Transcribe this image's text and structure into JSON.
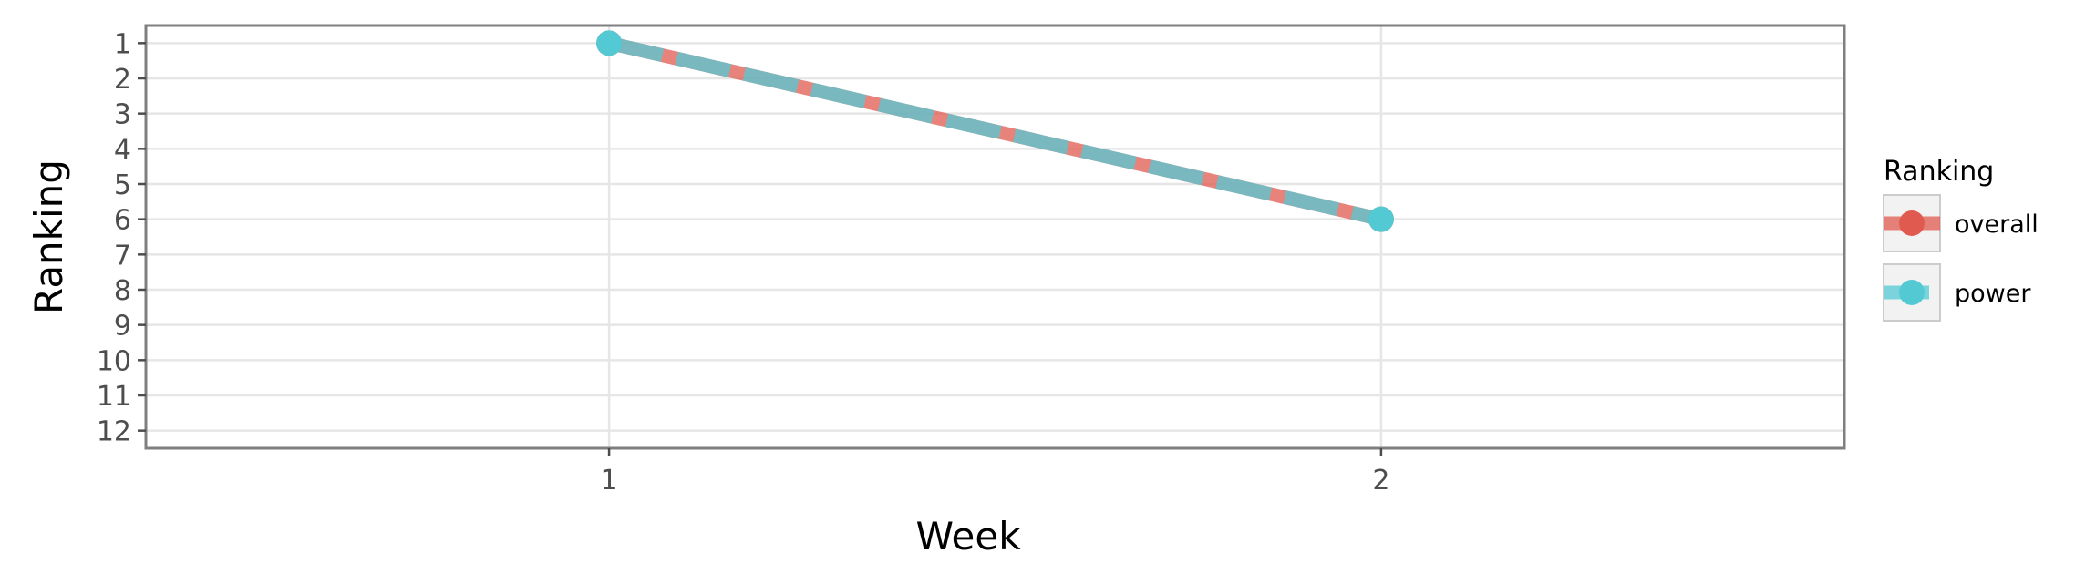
{
  "chart_data": {
    "type": "line",
    "xlabel": "Week",
    "ylabel": "Ranking",
    "x": [
      1,
      2
    ],
    "xlim": [
      0.4,
      2.6
    ],
    "ylim": [
      12.5,
      0.5
    ],
    "y_reversed": true,
    "x_ticks": [
      "1",
      "2"
    ],
    "y_ticks": [
      "1",
      "2",
      "3",
      "4",
      "5",
      "6",
      "7",
      "8",
      "9",
      "10",
      "11",
      "12"
    ],
    "grid": true,
    "legend": {
      "title": "Ranking",
      "position": "right"
    },
    "series": [
      {
        "name": "overall",
        "values": [
          1,
          6
        ],
        "color": "#e05a50",
        "style": "solid"
      },
      {
        "name": "power",
        "values": [
          1,
          6
        ],
        "color": "#53c9d4",
        "style": "dashed"
      }
    ]
  }
}
